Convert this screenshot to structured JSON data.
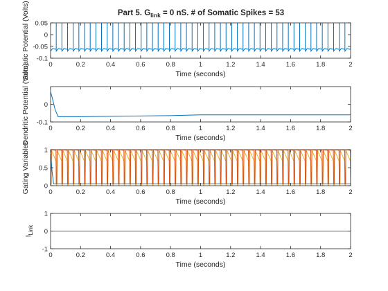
{
  "figure": {
    "title_prefix": "Part 5. G",
    "title_subscript": "link",
    "title_suffix": " = 0 nS. # of Somatic Spikes = 53"
  },
  "colors": {
    "blue": "#0072BD",
    "red": "#D95319",
    "yellow": "#EDB120",
    "axis": "#262626"
  },
  "chart_data": [
    {
      "type": "line",
      "ylabel": "Somatic Potential (Volts)",
      "xlabel": "Time (seconds)",
      "xlim": [
        0,
        2
      ],
      "ylim": [
        -0.1,
        0.05
      ],
      "x_ticks": [
        "0",
        "0.2",
        "0.4",
        "0.6",
        "0.8",
        "1",
        "1.2",
        "1.4",
        "1.6",
        "1.8",
        "2"
      ],
      "y_ticks": [
        "0.05",
        "0",
        "-0.05",
        "-0.1"
      ],
      "series": [
        {
          "color": "#0072BD",
          "spike_count": 53,
          "spike_peak": 0.05,
          "reset_level": -0.07,
          "resting_level": -0.06
        }
      ]
    },
    {
      "type": "line",
      "ylabel": "Dendritic Potential (Volts)",
      "xlabel": "Time (seconds)",
      "xlim": [
        0,
        2
      ],
      "ylim": [
        -0.1,
        0.1
      ],
      "x_ticks": [
        "0",
        "0.2",
        "0.4",
        "0.6",
        "0.8",
        "1",
        "1.2",
        "1.4",
        "1.6",
        "1.8",
        "2"
      ],
      "y_ticks": [
        "0",
        "-0.1"
      ],
      "series": [
        {
          "color": "#0072BD",
          "x": [
            0,
            0.01,
            0.03,
            0.05,
            0.2,
            0.4,
            0.6,
            0.8,
            1.0,
            1.2,
            1.4,
            1.6,
            1.8,
            2.0
          ],
          "y": [
            0.07,
            0.04,
            -0.03,
            -0.07,
            -0.07,
            -0.068,
            -0.066,
            -0.064,
            -0.06,
            -0.06,
            -0.06,
            -0.06,
            -0.06,
            -0.06
          ]
        }
      ]
    },
    {
      "type": "line",
      "ylabel": "Gating Variables",
      "xlabel": "Time (seconds)",
      "xlim": [
        0,
        2
      ],
      "ylim": [
        0,
        1
      ],
      "x_ticks": [
        "0",
        "0.2",
        "0.4",
        "0.6",
        "0.8",
        "1",
        "1.2",
        "1.4",
        "1.6",
        "1.8",
        "2"
      ],
      "y_ticks": [
        "1",
        "0.5",
        "0"
      ],
      "series": [
        {
          "color": "#D95319",
          "spike_count": 53,
          "peak": 1,
          "baseline": 0.05
        },
        {
          "color": "#EDB120",
          "spike_count": 53,
          "peak": 0.98,
          "baseline": 0.02
        },
        {
          "color": "#0072BD",
          "x": [
            0,
            0.01,
            0.02,
            2
          ],
          "y": [
            0.9,
            0.4,
            0.05,
            0.05
          ]
        }
      ]
    },
    {
      "type": "line",
      "ylabel_main": "I",
      "ylabel_sub": "Link",
      "xlabel": "Time (seconds)",
      "xlim": [
        0,
        2
      ],
      "ylim": [
        -1,
        1
      ],
      "x_ticks": [
        "0",
        "0.2",
        "0.4",
        "0.6",
        "0.8",
        "1",
        "1.2",
        "1.4",
        "1.6",
        "1.8",
        "2"
      ],
      "y_ticks": [
        "1",
        "0",
        "-1"
      ],
      "series": [
        {
          "color": "#0072BD",
          "x": [
            0,
            2
          ],
          "y": [
            0,
            0
          ]
        }
      ]
    }
  ]
}
